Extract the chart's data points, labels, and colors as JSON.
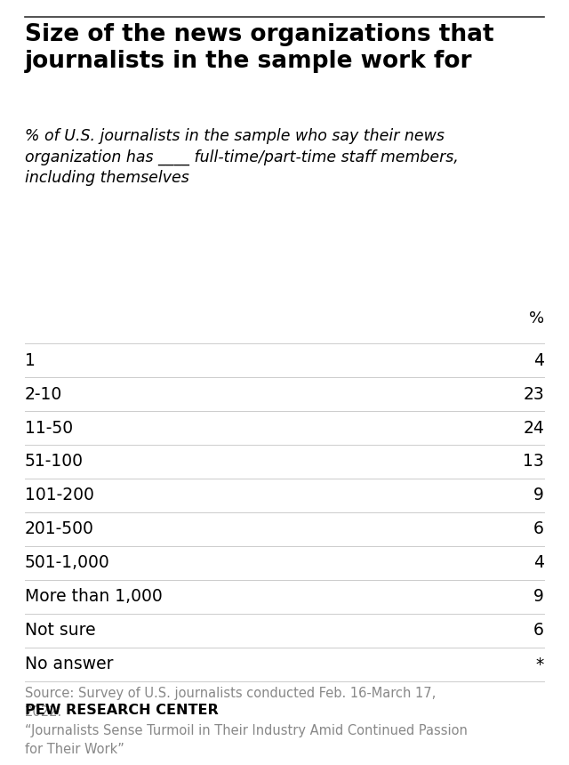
{
  "title": "Size of the news organizations that\njournalists in the sample work for",
  "subtitle": "% of U.S. journalists in the sample who say their news\norganization has ____ full-time/part-time staff members,\nincluding themselves",
  "col_header_right": "%",
  "rows": [
    {
      "label": "1",
      "value": "4"
    },
    {
      "label": "2-10",
      "value": "23"
    },
    {
      "label": "11-50",
      "value": "24"
    },
    {
      "label": "51-100",
      "value": "13"
    },
    {
      "label": "101-200",
      "value": "9"
    },
    {
      "label": "201-500",
      "value": "6"
    },
    {
      "label": "501-1,000",
      "value": "4"
    },
    {
      "label": "More than 1,000",
      "value": "9"
    },
    {
      "label": "Not sure",
      "value": "6"
    },
    {
      "label": "No answer",
      "value": "*"
    }
  ],
  "source_text": "Source: Survey of U.S. journalists conducted Feb. 16-March 17,\n2022.\n“Journalists Sense Turmoil in Their Industry Amid Continued Passion\nfor Their Work”",
  "branding": "PEW RESEARCH CENTER",
  "background_color": "#ffffff",
  "text_color": "#000000",
  "source_color": "#888888",
  "title_fontsize": 19,
  "subtitle_fontsize": 12.5,
  "row_fontsize": 13.5,
  "header_fontsize": 13,
  "source_fontsize": 10.5,
  "brand_fontsize": 11.5,
  "top_line_color": "#333333",
  "row_line_color": "#cccccc"
}
